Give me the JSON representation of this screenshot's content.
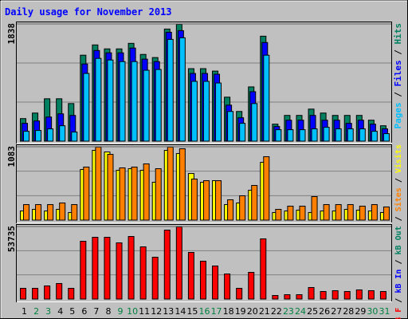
{
  "chart_data": [
    {
      "type": "bar",
      "title": "Daily usage for November 2013",
      "ylim": [
        0,
        1838
      ],
      "yticks": [
        1838
      ],
      "legend_separator": "/",
      "series": [
        {
          "name": "Hits",
          "color": "#008060",
          "values": [
            360,
            447,
            671,
            671,
            596,
            1354,
            1515,
            1453,
            1453,
            1540,
            1366,
            1317,
            1764,
            1838,
            1143,
            1143,
            1105,
            696,
            472,
            857,
            1652,
            273,
            410,
            410,
            509,
            447,
            410,
            410,
            410,
            335,
            248
          ]
        },
        {
          "name": "Files",
          "color": "#0000ff",
          "values": [
            286,
            323,
            385,
            435,
            410,
            1217,
            1428,
            1391,
            1391,
            1466,
            1292,
            1254,
            1714,
            1739,
            1068,
            1068,
            1056,
            571,
            373,
            782,
            1553,
            236,
            335,
            335,
            410,
            335,
            335,
            286,
            335,
            273,
            199
          ]
        },
        {
          "name": "Pages",
          "color": "#00c0ff",
          "values": [
            161,
            174,
            199,
            248,
            149,
            1068,
            1304,
            1279,
            1254,
            1254,
            1118,
            1130,
            1602,
            1627,
            944,
            944,
            918,
            472,
            286,
            596,
            1354,
            186,
            186,
            186,
            199,
            224,
            199,
            199,
            199,
            161,
            124
          ]
        }
      ]
    },
    {
      "type": "bar",
      "ylim": [
        0,
        1083
      ],
      "yticks": [
        1083
      ],
      "series": [
        {
          "name": "Visits",
          "color": "#ffff00",
          "values": [
            141,
            165,
            141,
            165,
            118,
            753,
            1036,
            1012,
            742,
            765,
            742,
            565,
            1036,
            989,
            694,
            565,
            588,
            235,
            259,
            447,
            859,
            118,
            141,
            153,
            118,
            141,
            141,
            165,
            153,
            141,
            118
          ]
        },
        {
          "name": "Sites",
          "color": "#ff8000",
          "values": [
            235,
            235,
            235,
            259,
            235,
            789,
            1083,
            977,
            777,
            789,
            836,
            765,
            1083,
            1059,
            612,
            588,
            588,
            306,
            365,
            518,
            942,
            165,
            212,
            212,
            353,
            235,
            235,
            235,
            212,
            235,
            200
          ]
        }
      ]
    },
    {
      "type": "bar",
      "ylim": [
        0,
        53735
      ],
      "yticks": [
        53735
      ],
      "categories": [
        "1",
        "2",
        "3",
        "4",
        "5",
        "6",
        "7",
        "8",
        "9",
        "10",
        "11",
        "12",
        "13",
        "14",
        "15",
        "16",
        "17",
        "18",
        "19",
        "20",
        "21",
        "22",
        "23",
        "24",
        "25",
        "26",
        "27",
        "28",
        "29",
        "30",
        "31"
      ],
      "category_colors": [
        "#000000",
        "#008040",
        "#008040",
        "#000000",
        "#000000",
        "#000000",
        "#000000",
        "#000000",
        "#008040",
        "#008040",
        "#000000",
        "#000000",
        "#000000",
        "#000000",
        "#000000",
        "#008040",
        "#008040",
        "#000000",
        "#000000",
        "#000000",
        "#000000",
        "#000000",
        "#008040",
        "#008040",
        "#000000",
        "#000000",
        "#000000",
        "#000000",
        "#000000",
        "#008040",
        "#008040"
      ],
      "series": [
        {
          "name": "kB F",
          "color": "#ff0000",
          "values": [
            8267,
            8267,
            10038,
            11810,
            8267,
            43107,
            46059,
            46059,
            41925,
            46650,
            38973,
            31297,
            51374,
            53735,
            34840,
            28344,
            24801,
            18896,
            8267,
            20077,
            44878,
            2953,
            3543,
            3543,
            8858,
            5905,
            6496,
            5905,
            7086,
            6496,
            5905
          ]
        },
        {
          "name": "kB In",
          "color": "#0000ff",
          "values": [
            0,
            0,
            0,
            0,
            0,
            0,
            0,
            0,
            0,
            0,
            0,
            0,
            0,
            0,
            0,
            0,
            0,
            0,
            0,
            0,
            0,
            0,
            0,
            0,
            0,
            0,
            0,
            0,
            0,
            0,
            0
          ]
        },
        {
          "name": "kB Out",
          "color": "#008060",
          "values": [
            0,
            0,
            0,
            0,
            0,
            0,
            0,
            0,
            0,
            0,
            0,
            0,
            0,
            0,
            0,
            0,
            0,
            0,
            0,
            0,
            0,
            0,
            0,
            0,
            0,
            0,
            0,
            0,
            0,
            0,
            0
          ]
        }
      ]
    }
  ]
}
